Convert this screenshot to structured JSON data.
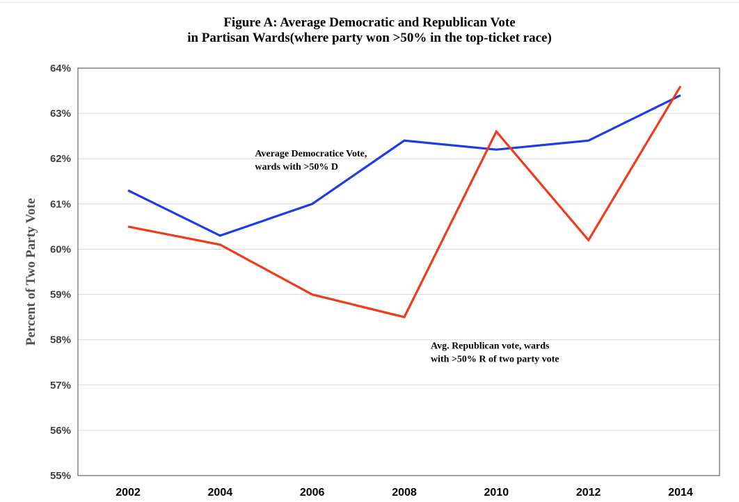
{
  "chart_data": {
    "type": "line",
    "title_lines": [
      "Figure A: Average Democratic and Republican Vote",
      "in Partisan Wards(where party won >50% in the top-ticket race)"
    ],
    "ylabel": "Percent of Two Party  Vote",
    "xlabel": "",
    "x": [
      "2002",
      "2004",
      "2006",
      "2008",
      "2010",
      "2012",
      "2014"
    ],
    "ylim": [
      55,
      64
    ],
    "yticks": [
      55,
      56,
      57,
      58,
      59,
      60,
      61,
      62,
      63,
      64
    ],
    "ytick_labels": [
      "55%",
      "56%",
      "57%",
      "58%",
      "59%",
      "60%",
      "61%",
      "62%",
      "63%",
      "64%"
    ],
    "grid": true,
    "series": [
      {
        "values": [
          61.3,
          60.3,
          61.0,
          62.4,
          62.2,
          62.4,
          63.4
        ],
        "color": "#1f3be8"
      },
      {
        "values": [
          60.5,
          60.1,
          59.0,
          58.5,
          62.6,
          60.2,
          63.6
        ],
        "color": "#f03a1a"
      }
    ],
    "annotations": [
      {
        "lines": [
          "Average Democratice Vote,",
          "wards with  >50% D"
        ],
        "x": "2004",
        "y": 62.05
      },
      {
        "lines": [
          "Avg. Republican vote, wards",
          "with >50% R of two party vote"
        ],
        "x": "2008",
        "y": 57.8
      }
    ]
  }
}
